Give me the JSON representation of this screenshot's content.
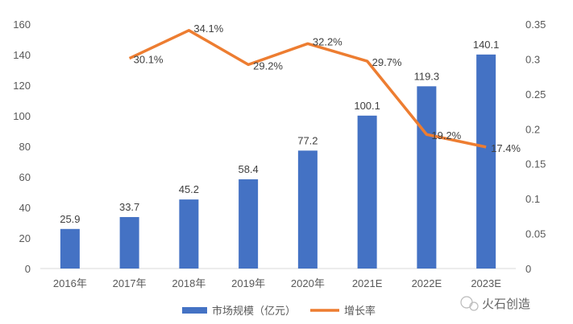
{
  "chart_data": {
    "type": "bar+line",
    "categories": [
      "2016年",
      "2017年",
      "2018年",
      "2019年",
      "2020年",
      "2021E",
      "2022E",
      "2023E"
    ],
    "series": [
      {
        "name": "市场规模（亿元）",
        "type": "bar",
        "axis": "left",
        "color": "#4472C4",
        "values": [
          25.9,
          33.7,
          45.2,
          58.4,
          77.2,
          100.1,
          119.3,
          140.1
        ],
        "labels": [
          "25.9",
          "33.7",
          "45.2",
          "58.4",
          "77.2",
          "100.1",
          "119.3",
          "140.1"
        ]
      },
      {
        "name": "增长率",
        "type": "line",
        "axis": "right",
        "color": "#ED7D31",
        "values": [
          null,
          0.301,
          0.341,
          0.292,
          0.322,
          0.297,
          0.192,
          0.174
        ],
        "labels": [
          "",
          "30.1%",
          "34.1%",
          "29.2%",
          "32.2%",
          "29.7%",
          "19.2%",
          "17.4%"
        ]
      }
    ],
    "y_left": {
      "range": [
        0,
        160
      ],
      "ticks": [
        "0",
        "20",
        "40",
        "60",
        "80",
        "100",
        "120",
        "140",
        "160"
      ]
    },
    "y_right": {
      "range": [
        0,
        0.35
      ],
      "ticks": [
        "0",
        "0.05",
        "0.1",
        "0.15",
        "0.2",
        "0.25",
        "0.3",
        "0.35"
      ]
    },
    "grid": false,
    "legend": "bottom"
  },
  "watermark": "火石创造"
}
